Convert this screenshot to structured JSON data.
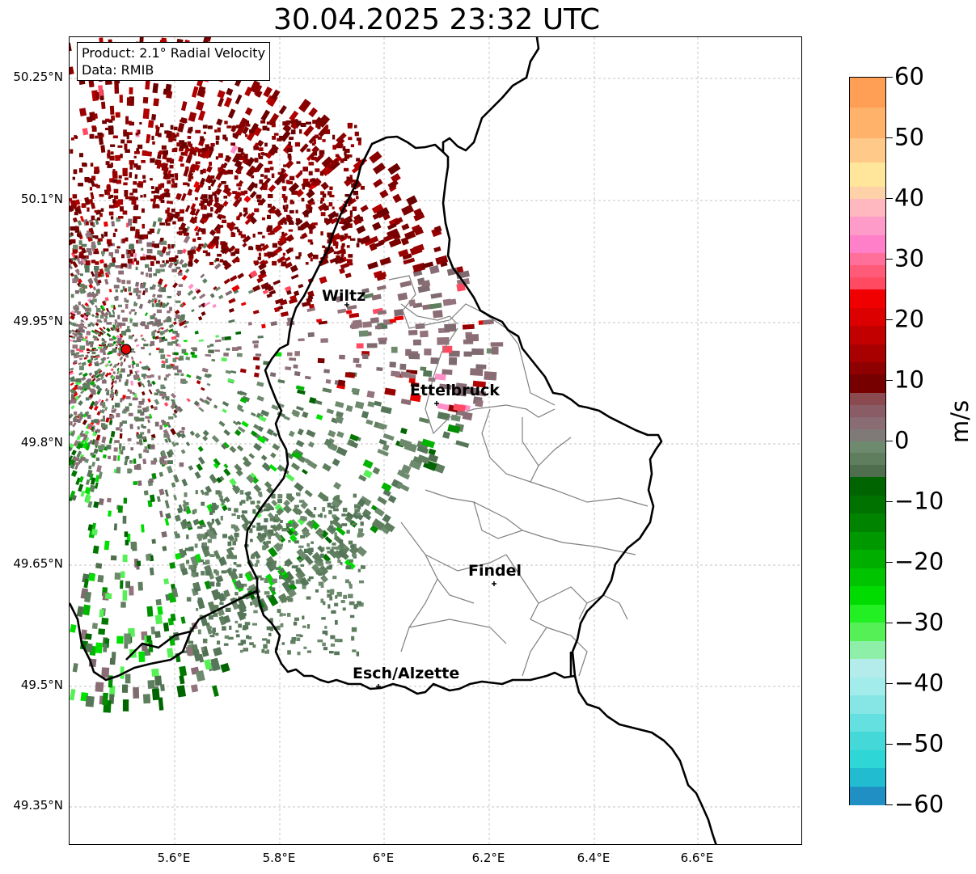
{
  "title": "30.04.2025 23:32 UTC",
  "info": {
    "product": "Product: 2.1° Radial Velocity",
    "data": "Data: RMIB"
  },
  "axes": {
    "lat_ticks": [
      "50.25°N",
      "50.1°N",
      "49.95°N",
      "49.8°N",
      "49.65°N",
      "49.5°N",
      "49.35°N"
    ],
    "lon_ticks": [
      "5.6°E",
      "5.8°E",
      "6°E",
      "6.2°E",
      "6.4°E",
      "6.6°E"
    ]
  },
  "cities": [
    {
      "name": "Wiltz",
      "marker": "plus-icon"
    },
    {
      "name": "Ettelbruck",
      "marker": "plus-icon"
    },
    {
      "name": "Findel",
      "marker": "plus-icon"
    },
    {
      "name": "Esch/Alzette",
      "marker": "plus-icon"
    }
  ],
  "radar_site": {
    "marker": "radar-site-icon",
    "color": "#e30000"
  },
  "colorbar": {
    "unit": "m/s",
    "ticks": [
      "60",
      "50",
      "40",
      "30",
      "20",
      "10",
      "0",
      "−10",
      "−20",
      "−30",
      "−40",
      "−50",
      "−60"
    ],
    "vmin": -60,
    "vmax": 60
  },
  "colors": {
    "outbound_dark": "#7a0000",
    "outbound_red": "#e60000",
    "outbound_pink": "#ff8fc8",
    "outbound_orange": "#ffa055",
    "near_zero_neg": "#5e7e5e",
    "near_zero_pos": "#8a6c74",
    "inbound_dark": "#006400",
    "inbound_bright": "#00e000",
    "inbound_cyan": "#2ed6d6",
    "inbound_blue": "#1f7fc4",
    "country_border": "#000000",
    "canton_border": "#808080",
    "grid": "#b0b0b0"
  }
}
